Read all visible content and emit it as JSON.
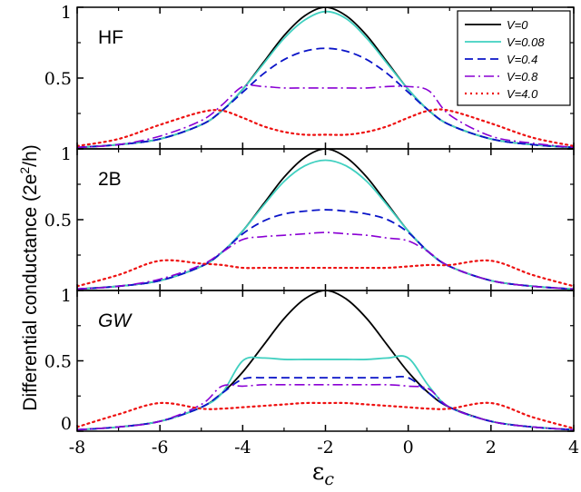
{
  "chart_data": {
    "type": "line",
    "ylabel": "Differential conductance (2e²/h)",
    "ylabel_parts": {
      "before": "Differential conductance (2e",
      "sup": "2",
      "after": "/h)"
    },
    "xlabel": "εc",
    "xlabel_parts": {
      "main": "ε",
      "sub": "c"
    },
    "xlim": [
      -8,
      4
    ],
    "x_ticks": [
      -8,
      -6,
      -4,
      -2,
      0,
      2,
      4
    ],
    "x_tick_labels": [
      "-8",
      "-6",
      "-4",
      "-2",
      "0",
      "2",
      "4"
    ],
    "ylim": [
      0,
      1
    ],
    "y_tick_labels_top_panels": [
      "1",
      "0.5",
      "1"
    ],
    "y_tick_labels_bottom_panel": [
      "1",
      "0.5",
      "0"
    ],
    "legend": {
      "placement": "top-right of first panel",
      "entries": [
        {
          "label": "V=0",
          "color": "#000000",
          "dash": "solid"
        },
        {
          "label": "V=0.08",
          "color": "#40d0c0",
          "dash": "solid"
        },
        {
          "label": "V=0.4",
          "color": "#0a14c8",
          "dash": "dashed"
        },
        {
          "label": "V=0.8",
          "color": "#8a00d4",
          "dash": "dashdot"
        },
        {
          "label": "V=4.0",
          "color": "#ee1111",
          "dash": "dotted"
        }
      ]
    },
    "x": [
      -8,
      -7,
      -6,
      -5,
      -4.5,
      -4,
      -3.5,
      -3,
      -2.5,
      -2,
      -1.5,
      -1,
      -0.5,
      0,
      0.5,
      1,
      2,
      3,
      4
    ],
    "panels": [
      {
        "label": "HF",
        "italic": false,
        "series": [
          {
            "name": "V=0",
            "values": [
              0.01,
              0.03,
              0.07,
              0.17,
              0.27,
              0.42,
              0.61,
              0.8,
              0.94,
              1.0,
              0.94,
              0.8,
              0.61,
              0.42,
              0.27,
              0.17,
              0.07,
              0.03,
              0.01
            ]
          },
          {
            "name": "V=0.08",
            "values": [
              0.01,
              0.03,
              0.07,
              0.17,
              0.27,
              0.42,
              0.6,
              0.78,
              0.91,
              0.97,
              0.92,
              0.78,
              0.6,
              0.42,
              0.27,
              0.17,
              0.07,
              0.03,
              0.01
            ]
          },
          {
            "name": "V=0.4",
            "values": [
              0.01,
              0.03,
              0.07,
              0.17,
              0.27,
              0.4,
              0.53,
              0.63,
              0.69,
              0.71,
              0.69,
              0.63,
              0.53,
              0.4,
              0.27,
              0.17,
              0.07,
              0.03,
              0.01
            ]
          },
          {
            "name": "V=0.8",
            "values": [
              0.01,
              0.03,
              0.09,
              0.2,
              0.31,
              0.44,
              0.44,
              0.43,
              0.43,
              0.43,
              0.43,
              0.43,
              0.44,
              0.44,
              0.41,
              0.24,
              0.09,
              0.04,
              0.01
            ]
          },
          {
            "name": "V=4.0",
            "values": [
              0.02,
              0.07,
              0.17,
              0.26,
              0.27,
              0.22,
              0.16,
              0.12,
              0.1,
              0.1,
              0.1,
              0.12,
              0.16,
              0.22,
              0.27,
              0.27,
              0.18,
              0.08,
              0.02
            ]
          }
        ]
      },
      {
        "label": "2B",
        "italic": false,
        "series": [
          {
            "name": "V=0",
            "values": [
              0.01,
              0.03,
              0.07,
              0.17,
              0.27,
              0.42,
              0.61,
              0.8,
              0.94,
              1.0,
              0.94,
              0.8,
              0.61,
              0.42,
              0.27,
              0.17,
              0.07,
              0.03,
              0.01
            ]
          },
          {
            "name": "V=0.08",
            "values": [
              0.01,
              0.03,
              0.07,
              0.17,
              0.27,
              0.42,
              0.6,
              0.77,
              0.88,
              0.92,
              0.88,
              0.77,
              0.6,
              0.42,
              0.27,
              0.17,
              0.07,
              0.03,
              0.01
            ]
          },
          {
            "name": "V=0.4",
            "values": [
              0.01,
              0.03,
              0.07,
              0.17,
              0.27,
              0.4,
              0.49,
              0.54,
              0.56,
              0.57,
              0.56,
              0.54,
              0.5,
              0.41,
              0.27,
              0.17,
              0.07,
              0.03,
              0.01
            ]
          },
          {
            "name": "V=0.8",
            "values": [
              0.01,
              0.03,
              0.08,
              0.18,
              0.27,
              0.36,
              0.38,
              0.39,
              0.4,
              0.41,
              0.4,
              0.39,
              0.37,
              0.35,
              0.27,
              0.17,
              0.07,
              0.03,
              0.01
            ]
          },
          {
            "name": "V=4.0",
            "values": [
              0.03,
              0.11,
              0.21,
              0.19,
              0.18,
              0.16,
              0.16,
              0.16,
              0.16,
              0.16,
              0.16,
              0.16,
              0.16,
              0.17,
              0.18,
              0.18,
              0.21,
              0.11,
              0.03
            ]
          }
        ]
      },
      {
        "label": "GW",
        "italic": true,
        "series": [
          {
            "name": "V=0",
            "values": [
              0.01,
              0.03,
              0.07,
              0.17,
              0.27,
              0.42,
              0.61,
              0.8,
              0.94,
              1.0,
              0.94,
              0.8,
              0.61,
              0.42,
              0.27,
              0.17,
              0.07,
              0.03,
              0.01
            ]
          },
          {
            "name": "V=0.08",
            "values": [
              0.01,
              0.03,
              0.07,
              0.17,
              0.27,
              0.5,
              0.52,
              0.51,
              0.51,
              0.51,
              0.51,
              0.51,
              0.52,
              0.52,
              0.32,
              0.17,
              0.07,
              0.03,
              0.01
            ]
          },
          {
            "name": "V=0.4",
            "values": [
              0.01,
              0.03,
              0.07,
              0.17,
              0.27,
              0.37,
              0.38,
              0.38,
              0.38,
              0.38,
              0.38,
              0.38,
              0.38,
              0.38,
              0.27,
              0.17,
              0.07,
              0.03,
              0.01
            ]
          },
          {
            "name": "V=0.8",
            "values": [
              0.01,
              0.03,
              0.07,
              0.19,
              0.32,
              0.32,
              0.33,
              0.33,
              0.33,
              0.33,
              0.33,
              0.33,
              0.33,
              0.32,
              0.3,
              0.17,
              0.07,
              0.03,
              0.01
            ]
          },
          {
            "name": "V=4.0",
            "values": [
              0.03,
              0.12,
              0.2,
              0.16,
              0.16,
              0.17,
              0.18,
              0.19,
              0.2,
              0.2,
              0.2,
              0.19,
              0.18,
              0.17,
              0.16,
              0.16,
              0.2,
              0.1,
              0.02
            ]
          }
        ]
      }
    ]
  }
}
